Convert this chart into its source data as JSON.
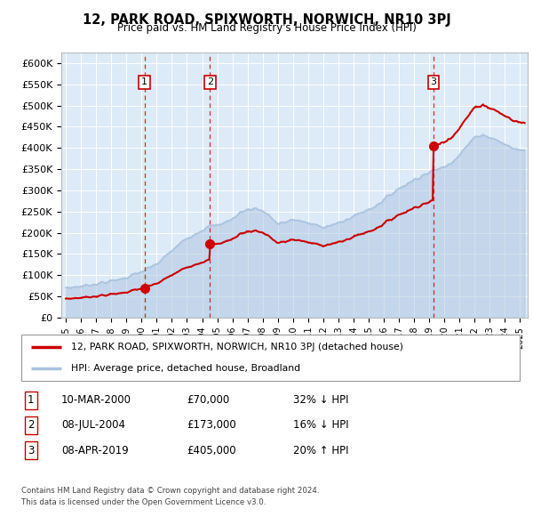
{
  "title": "12, PARK ROAD, SPIXWORTH, NORWICH, NR10 3PJ",
  "subtitle": "Price paid vs. HM Land Registry's House Price Index (HPI)",
  "ylim": [
    0,
    620000
  ],
  "xlim_start": 1994.7,
  "xlim_end": 2025.5,
  "sale_dates": [
    2000.19,
    2004.52,
    2019.27
  ],
  "sale_prices": [
    70000,
    173000,
    405000
  ],
  "sale_labels": [
    "1",
    "2",
    "3"
  ],
  "legend_line1": "12, PARK ROAD, SPIXWORTH, NORWICH, NR10 3PJ (detached house)",
  "legend_line2": "HPI: Average price, detached house, Broadland",
  "table_rows": [
    [
      "1",
      "10-MAR-2000",
      "£70,000",
      "32% ↓ HPI"
    ],
    [
      "2",
      "08-JUL-2004",
      "£173,000",
      "16% ↓ HPI"
    ],
    [
      "3",
      "08-APR-2019",
      "£405,000",
      "20% ↑ HPI"
    ]
  ],
  "footnote1": "Contains HM Land Registry data © Crown copyright and database right 2024.",
  "footnote2": "This data is licensed under the Open Government Licence v3.0.",
  "hpi_color": "#aac4e0",
  "sale_color": "#cc0000",
  "background_chart": "#ddeaf7",
  "vline_color": "#cc0000",
  "hpi_keypoints": [
    [
      1995.0,
      70000
    ],
    [
      1996.0,
      74000
    ],
    [
      1997.0,
      80000
    ],
    [
      1998.0,
      86000
    ],
    [
      1999.0,
      95000
    ],
    [
      2000.0,
      108000
    ],
    [
      2001.0,
      126000
    ],
    [
      2002.0,
      158000
    ],
    [
      2003.0,
      188000
    ],
    [
      2004.0,
      207000
    ],
    [
      2004.5,
      215000
    ],
    [
      2005.0,
      218000
    ],
    [
      2005.5,
      225000
    ],
    [
      2006.0,
      232000
    ],
    [
      2006.5,
      248000
    ],
    [
      2007.0,
      255000
    ],
    [
      2007.5,
      258000
    ],
    [
      2008.0,
      252000
    ],
    [
      2008.5,
      238000
    ],
    [
      2009.0,
      220000
    ],
    [
      2009.5,
      225000
    ],
    [
      2010.0,
      232000
    ],
    [
      2010.5,
      228000
    ],
    [
      2011.0,
      222000
    ],
    [
      2011.5,
      218000
    ],
    [
      2012.0,
      215000
    ],
    [
      2012.5,
      218000
    ],
    [
      2013.0,
      222000
    ],
    [
      2013.5,
      230000
    ],
    [
      2014.0,
      240000
    ],
    [
      2014.5,
      248000
    ],
    [
      2015.0,
      255000
    ],
    [
      2015.5,
      265000
    ],
    [
      2016.0,
      278000
    ],
    [
      2016.5,
      292000
    ],
    [
      2017.0,
      305000
    ],
    [
      2017.5,
      315000
    ],
    [
      2018.0,
      325000
    ],
    [
      2018.5,
      335000
    ],
    [
      2019.0,
      342000
    ],
    [
      2019.5,
      350000
    ],
    [
      2020.0,
      355000
    ],
    [
      2020.5,
      368000
    ],
    [
      2021.0,
      385000
    ],
    [
      2021.5,
      405000
    ],
    [
      2022.0,
      425000
    ],
    [
      2022.5,
      432000
    ],
    [
      2023.0,
      425000
    ],
    [
      2023.5,
      418000
    ],
    [
      2024.0,
      408000
    ],
    [
      2024.5,
      400000
    ],
    [
      2025.0,
      395000
    ]
  ]
}
